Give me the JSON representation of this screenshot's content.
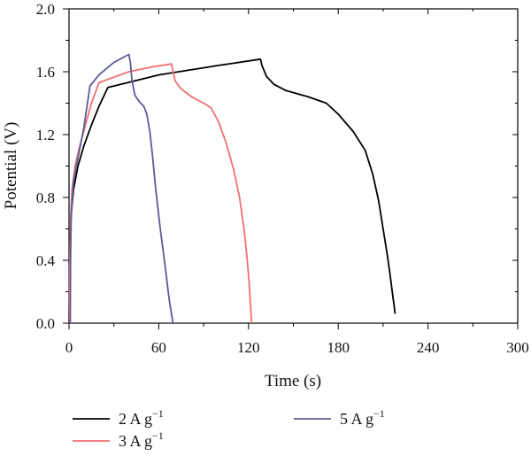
{
  "chart_data": {
    "type": "line",
    "title": "",
    "xlabel": "Time (s)",
    "ylabel": "Potential (V)",
    "xlim": [
      0,
      300
    ],
    "ylim": [
      0.0,
      2.0
    ],
    "xticks": [
      0,
      60,
      120,
      180,
      240,
      300
    ],
    "yticks": [
      0.0,
      0.4,
      0.8,
      1.2,
      1.6,
      2.0
    ],
    "xtick_labels": [
      "0",
      "60",
      "120",
      "180",
      "240",
      "300"
    ],
    "ytick_labels": [
      "0.0",
      "0.4",
      "0.8",
      "1.2",
      "1.6",
      "2.0"
    ],
    "grid": false,
    "legend_position": "bottom",
    "series": [
      {
        "name": "2 A g",
        "name_sup": "−1",
        "color": "#000000",
        "x": [
          0,
          0.6,
          1.5,
          3,
          6,
          10,
          15,
          20,
          26,
          60,
          100,
          128,
          129,
          132,
          137,
          145,
          160,
          172,
          180,
          190,
          198,
          203,
          207,
          210,
          213,
          215,
          216.5,
          217.5,
          218
        ],
        "y": [
          0.0,
          0.45,
          0.7,
          0.85,
          1.0,
          1.13,
          1.26,
          1.38,
          1.5,
          1.58,
          1.64,
          1.68,
          1.64,
          1.57,
          1.52,
          1.48,
          1.44,
          1.4,
          1.33,
          1.22,
          1.1,
          0.95,
          0.78,
          0.6,
          0.42,
          0.28,
          0.17,
          0.1,
          0.06
        ]
      },
      {
        "name": "3 A g",
        "name_sup": "−1",
        "color": "#f07072",
        "x": [
          0.3,
          0.5,
          1,
          2,
          4,
          7,
          11,
          15,
          20,
          40,
          55,
          68.5,
          69.5,
          71,
          75,
          82,
          90,
          95,
          100,
          105,
          110,
          114,
          117,
          119,
          120.5,
          121.3,
          121.8,
          122.1
        ],
        "y": [
          0.0,
          0.35,
          0.65,
          0.85,
          1.0,
          1.12,
          1.26,
          1.4,
          1.53,
          1.6,
          1.63,
          1.65,
          1.6,
          1.54,
          1.49,
          1.44,
          1.4,
          1.37,
          1.28,
          1.15,
          0.98,
          0.8,
          0.6,
          0.42,
          0.25,
          0.12,
          0.05,
          0.0
        ]
      },
      {
        "name": "5 A g",
        "name_sup": "−1",
        "color": "#5b5b96",
        "x": [
          0.8,
          1,
          1.5,
          3,
          6,
          10,
          14,
          20,
          30,
          40,
          41,
          42,
          44,
          47,
          50,
          52,
          54,
          56,
          58,
          61,
          64,
          67,
          69.5
        ],
        "y": [
          0.0,
          0.4,
          0.7,
          0.9,
          1.05,
          1.25,
          1.51,
          1.58,
          1.66,
          1.71,
          1.66,
          1.55,
          1.45,
          1.41,
          1.38,
          1.33,
          1.22,
          1.05,
          0.85,
          0.6,
          0.38,
          0.15,
          0.0
        ]
      }
    ]
  }
}
